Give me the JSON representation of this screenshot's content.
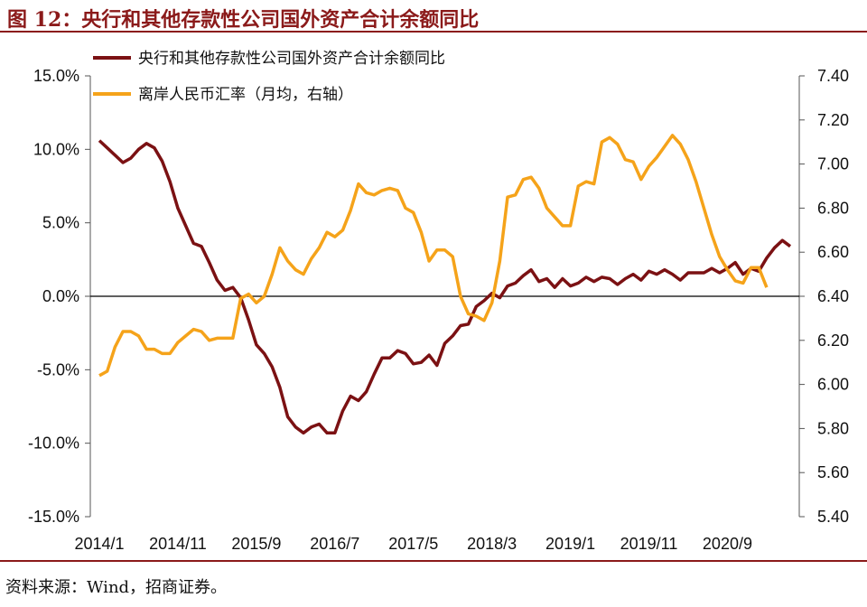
{
  "header": {
    "title": "图 12：央行和其他存款性公司国外资产合计余额同比"
  },
  "footer": {
    "source": "资料来源：Wind，招商证券。"
  },
  "colors": {
    "series1": "#7B1113",
    "series2": "#F5A31A",
    "title": "#8B1A1A"
  },
  "chart_data": {
    "type": "line",
    "title": "",
    "x_tick_labels": [
      "2014/1",
      "2014/11",
      "2015/9",
      "2016/7",
      "2017/5",
      "2018/3",
      "2019/1",
      "2019/11",
      "2020/9"
    ],
    "y_left": {
      "range": [
        -15.0,
        15.0
      ],
      "ticks": [
        "15.0%",
        "10.0%",
        "5.0%",
        "0.0%",
        "-5.0%",
        "-10.0%",
        "-15.0%"
      ],
      "unit": "%"
    },
    "y_right": {
      "range": [
        5.4,
        7.4
      ],
      "ticks": [
        "7.40",
        "7.20",
        "7.00",
        "6.80",
        "6.60",
        "6.40",
        "6.20",
        "6.00",
        "5.80",
        "5.60",
        "5.40"
      ]
    },
    "legend": {
      "placement": "top-left"
    },
    "grid": false,
    "zero_line": true,
    "x_start": "2014-01",
    "series": [
      {
        "name": "央行和其他存款性公司国外资产合计余额同比",
        "axis": "left",
        "values": [
          10.6,
          10.1,
          9.6,
          9.1,
          9.4,
          10.0,
          10.4,
          10.1,
          9.2,
          7.8,
          6.0,
          4.8,
          3.6,
          3.4,
          2.3,
          1.1,
          0.4,
          0.6,
          -0.1,
          -1.6,
          -3.3,
          -3.9,
          -4.8,
          -6.2,
          -8.2,
          -8.9,
          -9.3,
          -8.9,
          -8.7,
          -9.3,
          -9.3,
          -7.8,
          -6.8,
          -7.1,
          -6.5,
          -5.3,
          -4.2,
          -4.2,
          -3.7,
          -3.9,
          -4.6,
          -4.5,
          -4.0,
          -4.7,
          -3.2,
          -2.7,
          -2.0,
          -1.9,
          -0.7,
          -0.3,
          0.2,
          -0.1,
          0.7,
          0.9,
          1.4,
          1.8,
          1.0,
          1.2,
          0.6,
          1.2,
          0.7,
          0.9,
          1.3,
          1.0,
          1.3,
          1.2,
          0.8,
          1.2,
          1.5,
          1.1,
          1.7,
          1.5,
          1.8,
          1.5,
          1.1,
          1.6,
          1.6,
          1.6,
          1.9,
          1.6,
          1.9,
          2.3,
          1.5,
          1.9,
          1.7,
          2.6,
          3.3,
          3.8,
          3.4
        ]
      },
      {
        "name": "离岸人民币汇率（月均，右轴）",
        "axis": "right",
        "values": [
          6.04,
          6.06,
          6.17,
          6.24,
          6.24,
          6.22,
          6.16,
          6.16,
          6.14,
          6.14,
          6.19,
          6.22,
          6.25,
          6.24,
          6.2,
          6.21,
          6.21,
          6.21,
          6.39,
          6.41,
          6.37,
          6.4,
          6.5,
          6.62,
          6.56,
          6.52,
          6.5,
          6.57,
          6.62,
          6.69,
          6.67,
          6.7,
          6.79,
          6.91,
          6.87,
          6.86,
          6.88,
          6.89,
          6.88,
          6.8,
          6.78,
          6.69,
          6.56,
          6.61,
          6.61,
          6.58,
          6.4,
          6.32,
          6.31,
          6.29,
          6.37,
          6.56,
          6.85,
          6.86,
          6.93,
          6.94,
          6.89,
          6.8,
          6.76,
          6.72,
          6.72,
          6.9,
          6.92,
          6.91,
          7.1,
          7.12,
          7.09,
          7.02,
          7.01,
          6.93,
          6.99,
          7.03,
          7.08,
          7.13,
          7.09,
          7.02,
          6.92,
          6.8,
          6.68,
          6.58,
          6.52,
          6.47,
          6.46,
          6.53,
          6.53,
          6.44
        ]
      }
    ]
  }
}
